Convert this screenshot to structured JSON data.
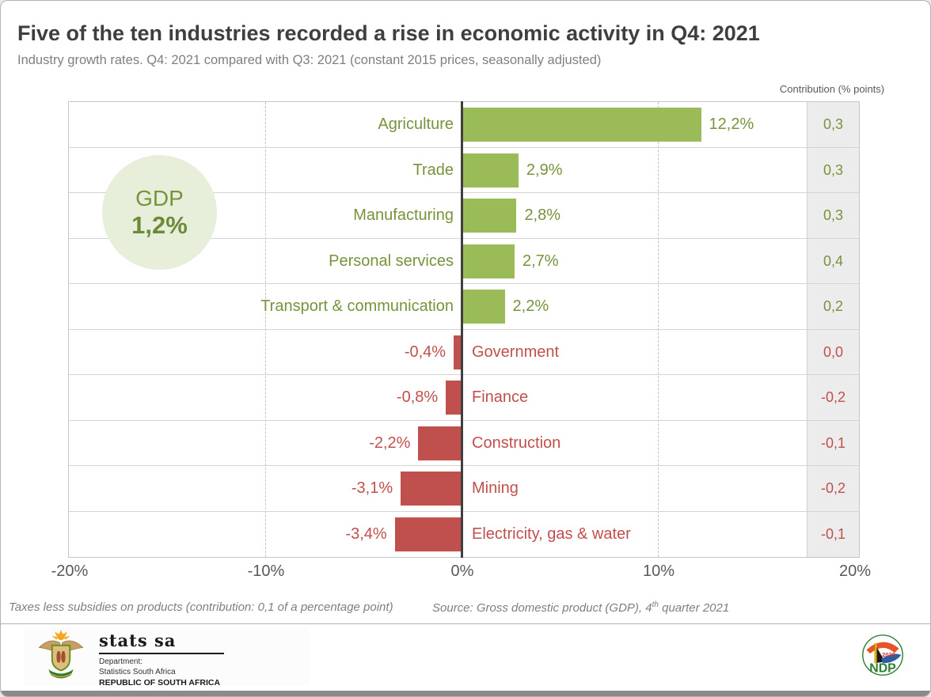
{
  "header": {
    "title": "Five of the ten industries recorded a rise in economic activity in Q4: 2021",
    "subtitle": "Industry growth rates. Q4: 2021 compared with Q3: 2021 (constant 2015 prices, seasonally adjusted)",
    "contribution_label": "Contribution (% points)"
  },
  "gdp_badge": {
    "label": "GDP",
    "value": "1,2%"
  },
  "chart_data": {
    "type": "bar",
    "orientation": "horizontal",
    "title": "Five of the ten industries recorded a rise in economic activity in Q4: 2021",
    "subtitle": "Industry growth rates. Q4: 2021 compared with Q3: 2021 (constant 2015 prices, seasonally adjusted)",
    "xlim": [
      -20,
      20
    ],
    "x_ticks": [
      "-20%",
      "-10%",
      "0%",
      "10%",
      "20%"
    ],
    "grid": "dashed vertical at -10% and +10%, solid zero axis",
    "categories": [
      "Agriculture",
      "Trade",
      "Manufacturing",
      "Personal services",
      "Transport & communication",
      "Government",
      "Finance",
      "Construction",
      "Mining",
      "Electricity, gas & water"
    ],
    "values": [
      12.2,
      2.9,
      2.8,
      2.7,
      2.2,
      -0.4,
      -0.8,
      -2.2,
      -3.1,
      -3.4
    ],
    "value_labels": [
      "12,2%",
      "2,9%",
      "2,8%",
      "2,7%",
      "2,2%",
      "-0,4%",
      "-0,8%",
      "-2,2%",
      "-3,1%",
      "-3,4%"
    ],
    "contributions": [
      "0,3",
      "0,3",
      "0,3",
      "0,4",
      "0,2",
      "0,0",
      "-0,2",
      "-0,1",
      "-0,2",
      "-0,1"
    ],
    "positive_color": "#9BBB59",
    "negative_color": "#C0504D",
    "positive_text_color": "#77933C",
    "negative_text_color": "#C0504D"
  },
  "footer": {
    "note": "Taxes less subsidies on products (contribution: 0,1 of a percentage point)",
    "source_prefix": "Source: Gross domestic product (GDP), 4",
    "source_sup": "th",
    "source_suffix": " quarter 2021"
  },
  "branding": {
    "statssa": {
      "name": "stats sa",
      "dept_line1": "Department:",
      "dept_line2": "Statistics South Africa",
      "dept_line3": "REPUBLIC OF SOUTH AFRICA"
    },
    "ndp": {
      "acronym": "NDP",
      "year": "2030"
    }
  }
}
